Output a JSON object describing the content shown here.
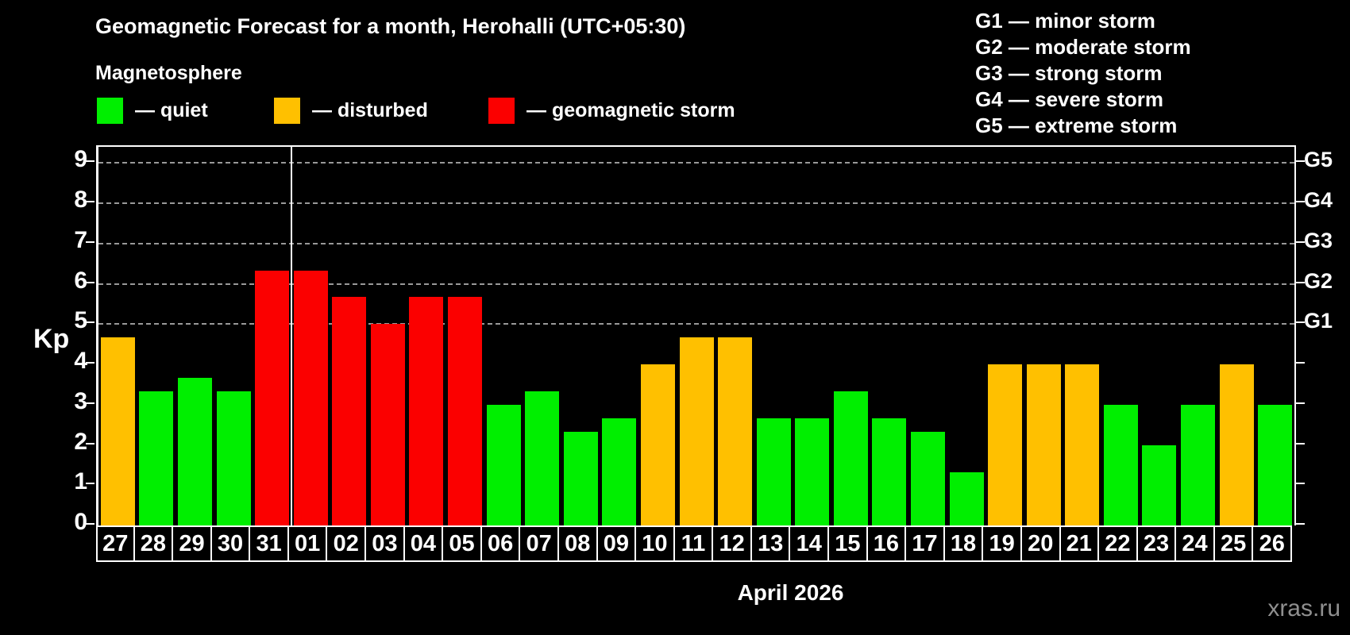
{
  "header": {
    "title": "Geomagnetic Forecast for a month, Herohalli (UTC+05:30)",
    "subtitle": "Magnetosphere"
  },
  "legend": {
    "quiet": "— quiet",
    "disturbed": "— disturbed",
    "storm": "— geomagnetic storm"
  },
  "g_legend": [
    "G1 — minor storm",
    "G2 — moderate storm",
    "G3 — strong storm",
    "G4 — severe storm",
    "G5 — extreme storm"
  ],
  "colors": {
    "quiet": "#00ef00",
    "disturbed": "#ffc000",
    "storm": "#fb0000",
    "axis": "#ffffff",
    "grid": "#999999",
    "watermark": "#8f8f8f"
  },
  "axes": {
    "y_label": "Kp",
    "y_ticks": [
      "9",
      "8",
      "7",
      "6",
      "5",
      "4",
      "3",
      "2",
      "1",
      "0"
    ],
    "right_labels": [
      {
        "label": "G5",
        "kp": 9
      },
      {
        "label": "G4",
        "kp": 8
      },
      {
        "label": "G3",
        "kp": 7
      },
      {
        "label": "G2",
        "kp": 6
      },
      {
        "label": "G1",
        "kp": 5
      }
    ],
    "month_label": "April 2026"
  },
  "watermark": "xras.ru",
  "chart_data": {
    "type": "bar",
    "title": "Geomagnetic Forecast for a month, Herohalli (UTC+05:30)",
    "ylabel": "Kp",
    "ylim": [
      0,
      9.4
    ],
    "grid_levels_kp": [
      5,
      6,
      7,
      8,
      9
    ],
    "grid_style": "dashed",
    "legend_position": "top-left",
    "month_separator_after_index": 4,
    "categories": [
      "27",
      "28",
      "29",
      "30",
      "31",
      "01",
      "02",
      "03",
      "04",
      "05",
      "06",
      "07",
      "08",
      "09",
      "10",
      "11",
      "12",
      "13",
      "14",
      "15",
      "16",
      "17",
      "18",
      "19",
      "20",
      "21",
      "22",
      "23",
      "24",
      "25",
      "26"
    ],
    "values": [
      4.67,
      3.33,
      3.67,
      3.33,
      6.33,
      6.33,
      5.67,
      5.0,
      5.67,
      5.67,
      3.0,
      3.33,
      2.33,
      2.67,
      4.0,
      4.67,
      4.67,
      2.67,
      2.67,
      3.33,
      2.67,
      2.33,
      1.33,
      4.0,
      4.0,
      4.0,
      3.0,
      2.0,
      3.0,
      4.0,
      3.0
    ],
    "statuses": [
      "disturbed",
      "quiet",
      "quiet",
      "quiet",
      "storm",
      "storm",
      "storm",
      "storm",
      "storm",
      "storm",
      "quiet",
      "quiet",
      "quiet",
      "quiet",
      "disturbed",
      "disturbed",
      "disturbed",
      "quiet",
      "quiet",
      "quiet",
      "quiet",
      "quiet",
      "quiet",
      "disturbed",
      "disturbed",
      "disturbed",
      "quiet",
      "quiet",
      "quiet",
      "disturbed",
      "quiet"
    ]
  }
}
